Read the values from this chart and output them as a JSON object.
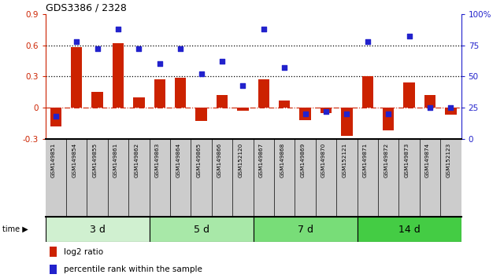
{
  "title": "GDS3386 / 2328",
  "samples": [
    "GSM149851",
    "GSM149854",
    "GSM149855",
    "GSM149861",
    "GSM149862",
    "GSM149863",
    "GSM149864",
    "GSM149865",
    "GSM149866",
    "GSM152120",
    "GSM149867",
    "GSM149868",
    "GSM149869",
    "GSM149870",
    "GSM152121",
    "GSM149871",
    "GSM149872",
    "GSM149873",
    "GSM149874",
    "GSM152123"
  ],
  "log2_ratio": [
    -0.18,
    0.58,
    0.15,
    0.62,
    0.1,
    0.27,
    0.29,
    -0.13,
    0.12,
    -0.03,
    0.27,
    0.07,
    -0.12,
    -0.05,
    -0.27,
    0.3,
    -0.22,
    0.24,
    0.12,
    -0.07
  ],
  "percentile": [
    18,
    78,
    72,
    88,
    72,
    60,
    72,
    52,
    62,
    43,
    88,
    57,
    20,
    22,
    20,
    78,
    20,
    82,
    25,
    25
  ],
  "groups": [
    {
      "label": "3 d",
      "start": 0,
      "end": 5,
      "color": "#d0f0d0"
    },
    {
      "label": "5 d",
      "start": 5,
      "end": 10,
      "color": "#a8e8a8"
    },
    {
      "label": "7 d",
      "start": 10,
      "end": 15,
      "color": "#78dd78"
    },
    {
      "label": "14 d",
      "start": 15,
      "end": 20,
      "color": "#44cc44"
    }
  ],
  "ylim_left": [
    -0.3,
    0.9
  ],
  "ylim_right": [
    0,
    100
  ],
  "yticks_left": [
    -0.3,
    0.0,
    0.3,
    0.6,
    0.9
  ],
  "yticks_right": [
    0,
    25,
    50,
    75,
    100
  ],
  "hlines": [
    0.3,
    0.6
  ],
  "bar_color": "#cc2200",
  "dot_color": "#2222cc",
  "zero_line_color": "#cc2200",
  "background_color": "#ffffff",
  "ticker_bg": "#cccccc",
  "legend_items": [
    "log2 ratio",
    "percentile rank within the sample"
  ]
}
